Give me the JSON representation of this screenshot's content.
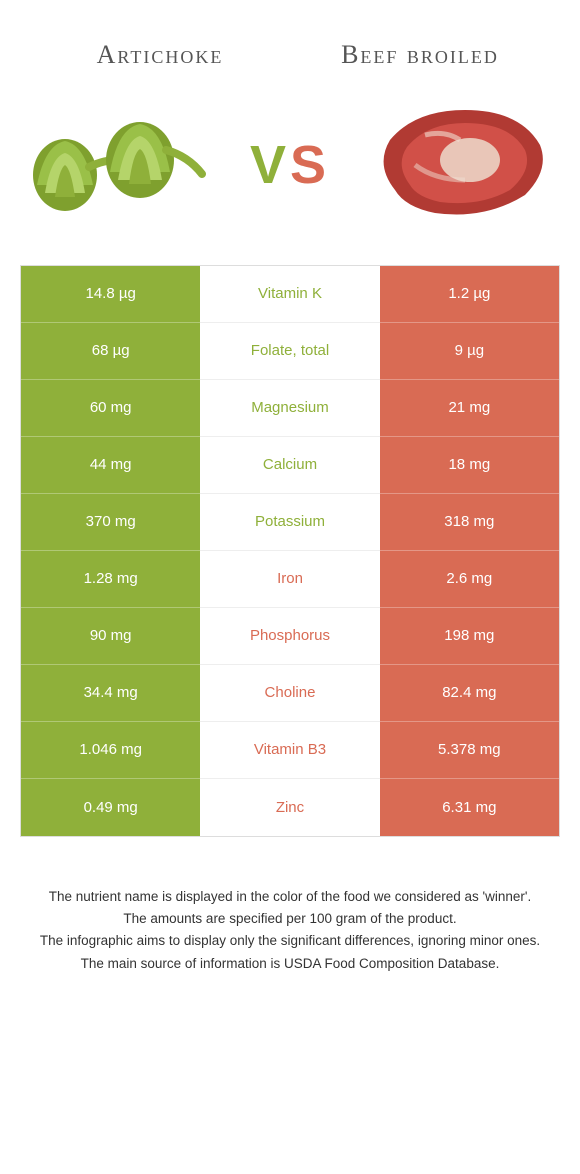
{
  "colors": {
    "left": "#8fb03a",
    "right": "#d96b54",
    "mid_bg": "#ffffff",
    "border": "#dddddd",
    "text_dark": "#333333"
  },
  "header": {
    "left_title": "Artichoke",
    "right_title": "Beef broiled",
    "vs_v": "V",
    "vs_s": "S"
  },
  "rows": [
    {
      "left": "14.8 µg",
      "name": "Vitamin K",
      "right": "1.2 µg",
      "winner": "left"
    },
    {
      "left": "68 µg",
      "name": "Folate, total",
      "right": "9 µg",
      "winner": "left"
    },
    {
      "left": "60 mg",
      "name": "Magnesium",
      "right": "21 mg",
      "winner": "left"
    },
    {
      "left": "44 mg",
      "name": "Calcium",
      "right": "18 mg",
      "winner": "left"
    },
    {
      "left": "370 mg",
      "name": "Potassium",
      "right": "318 mg",
      "winner": "left"
    },
    {
      "left": "1.28 mg",
      "name": "Iron",
      "right": "2.6 mg",
      "winner": "right"
    },
    {
      "left": "90 mg",
      "name": "Phosphorus",
      "right": "198 mg",
      "winner": "right"
    },
    {
      "left": "34.4 mg",
      "name": "Choline",
      "right": "82.4 mg",
      "winner": "right"
    },
    {
      "left": "1.046 mg",
      "name": "Vitamin B3",
      "right": "5.378 mg",
      "winner": "right"
    },
    {
      "left": "0.49 mg",
      "name": "Zinc",
      "right": "6.31 mg",
      "winner": "right"
    }
  ],
  "notes": [
    "The nutrient name is displayed in the color of the food we considered as 'winner'.",
    "The amounts are specified per 100 gram of the product.",
    "The infographic aims to display only the significant differences, ignoring minor ones.",
    "The main source of information is USDA Food Composition Database."
  ]
}
